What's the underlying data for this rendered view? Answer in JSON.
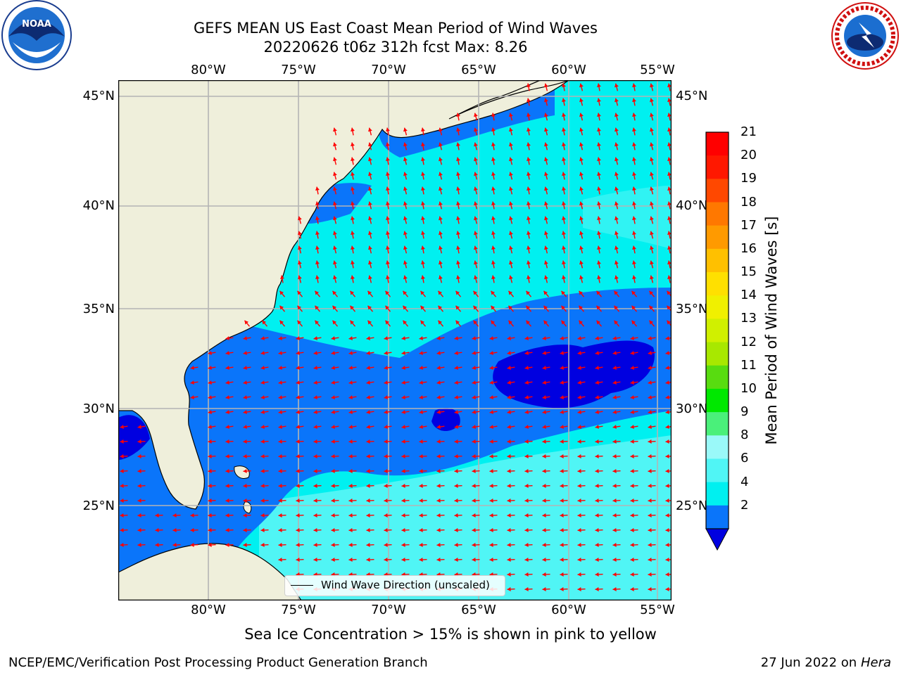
{
  "title": {
    "line1": "GEFS MEAN US East Coast Mean Period of Wind Waves",
    "line2": "20220626 t06z 312h fcst   Max: 8.26"
  },
  "logos": {
    "left": "noaa-logo",
    "right": "national-weather-service-logo"
  },
  "map": {
    "region": "US East Coast / Western North Atlantic",
    "lon_labels": [
      "80°W",
      "75°W",
      "70°W",
      "65°W",
      "60°W",
      "55°W"
    ],
    "lat_labels": [
      "45°N",
      "40°N",
      "35°N",
      "30°N",
      "25°N"
    ],
    "lon_range": [
      -85,
      -54.2
    ],
    "lat_range": [
      20.5,
      46
    ],
    "arrow_color": "#ff0000",
    "land_color": "#efefdb",
    "grid": true
  },
  "legend": {
    "label": "Wind Wave Direction (unscaled)"
  },
  "colorbar": {
    "title": "Mean Period of Wind Waves [s]",
    "tick_labels": [
      "21",
      "20",
      "19",
      "18",
      "17",
      "16",
      "15",
      "14",
      "13",
      "12",
      "11",
      "10",
      "9",
      "8",
      "6",
      "4",
      "2"
    ],
    "levels": [
      {
        "label": "2-4",
        "color": "#0a75fa"
      },
      {
        "label": "4-6",
        "color": "#00f0f0"
      },
      {
        "label": "6-8",
        "color": "#50f5f5"
      },
      {
        "label": "8-9",
        "color": "#9af9f9"
      },
      {
        "label": "9-10",
        "color": "#4af07a"
      },
      {
        "label": "10-11",
        "color": "#00e800"
      },
      {
        "label": "11-12",
        "color": "#58dc10"
      },
      {
        "label": "12-13",
        "color": "#a8e800"
      },
      {
        "label": "13-14",
        "color": "#d0f000"
      },
      {
        "label": "14-15",
        "color": "#f0f000"
      },
      {
        "label": "15-16",
        "color": "#ffe000"
      },
      {
        "label": "16-17",
        "color": "#ffc000"
      },
      {
        "label": "17-18",
        "color": "#ff9a00"
      },
      {
        "label": "18-19",
        "color": "#ff7800"
      },
      {
        "label": "19-20",
        "color": "#ff4800"
      },
      {
        "label": "20-21",
        "color": "#ff1800"
      },
      {
        "label": ">21",
        "color": "#ff0000"
      }
    ],
    "under_color": "#0000e0"
  },
  "footnote": "Sea Ice Concentration > 15% is shown in pink to yellow",
  "credit": "NCEP/EMC/Verification Post Processing Product Generation Branch",
  "stamp": {
    "date": "27 Jun 2022 on",
    "host": "Hera"
  }
}
